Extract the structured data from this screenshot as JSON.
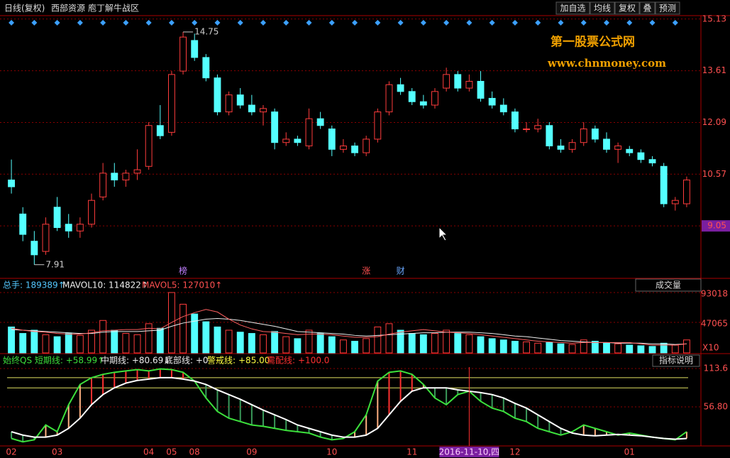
{
  "toolbar": {
    "title": "日线(复权)",
    "stock": "西部资源",
    "zone": "庖丁解牛战区",
    "buttons": [
      "加自选",
      "均线",
      "复权",
      "叠",
      "预测"
    ]
  },
  "watermark": {
    "name": "第一股票公式网",
    "url": "www.chnmoney.com"
  },
  "price_panel": {
    "ylim": [
      7.55,
      15.23
    ],
    "yticks": [
      15.13,
      13.61,
      12.09,
      10.57,
      9.05
    ],
    "high": 14.75,
    "low": 7.91,
    "candles": [
      [
        10.4,
        11.0,
        10.0,
        10.2
      ],
      [
        9.4,
        9.6,
        8.6,
        8.8
      ],
      [
        8.6,
        8.9,
        7.91,
        8.2
      ],
      [
        8.3,
        9.3,
        8.2,
        9.1
      ],
      [
        9.6,
        9.9,
        8.9,
        9.0
      ],
      [
        9.1,
        9.4,
        8.7,
        8.9
      ],
      [
        8.9,
        9.3,
        8.7,
        9.1
      ],
      [
        9.1,
        10.0,
        9.0,
        9.8
      ],
      [
        9.9,
        10.9,
        9.8,
        10.6
      ],
      [
        10.6,
        10.9,
        10.2,
        10.4
      ],
      [
        10.4,
        10.7,
        10.2,
        10.6
      ],
      [
        10.6,
        11.3,
        10.4,
        10.7
      ],
      [
        10.8,
        12.1,
        10.7,
        12.0
      ],
      [
        12.0,
        12.6,
        11.6,
        11.7
      ],
      [
        11.8,
        13.6,
        11.7,
        13.5
      ],
      [
        13.6,
        14.75,
        13.5,
        14.6
      ],
      [
        14.5,
        14.7,
        13.9,
        14.0
      ],
      [
        14.0,
        14.1,
        13.3,
        13.4
      ],
      [
        13.4,
        13.5,
        12.3,
        12.4
      ],
      [
        12.4,
        13.0,
        12.3,
        12.9
      ],
      [
        12.9,
        13.1,
        12.5,
        12.6
      ],
      [
        12.6,
        12.9,
        12.3,
        12.4
      ],
      [
        12.4,
        12.6,
        12.0,
        12.5
      ],
      [
        12.4,
        12.5,
        11.3,
        11.5
      ],
      [
        11.5,
        11.8,
        11.4,
        11.6
      ],
      [
        11.6,
        11.7,
        11.4,
        11.5
      ],
      [
        11.4,
        12.5,
        11.3,
        12.2
      ],
      [
        12.2,
        12.4,
        11.9,
        12.0
      ],
      [
        11.9,
        12.0,
        11.1,
        11.3
      ],
      [
        11.3,
        11.6,
        11.2,
        11.4
      ],
      [
        11.4,
        11.5,
        11.1,
        11.2
      ],
      [
        11.2,
        11.7,
        11.1,
        11.6
      ],
      [
        11.6,
        12.5,
        11.5,
        12.4
      ],
      [
        12.4,
        13.3,
        12.3,
        13.2
      ],
      [
        13.2,
        13.4,
        12.9,
        13.0
      ],
      [
        13.0,
        13.1,
        12.6,
        12.7
      ],
      [
        12.7,
        12.9,
        12.5,
        12.6
      ],
      [
        12.6,
        13.1,
        12.5,
        13.0
      ],
      [
        13.1,
        13.7,
        13.0,
        13.5
      ],
      [
        13.5,
        13.6,
        13.0,
        13.1
      ],
      [
        13.1,
        13.5,
        13.0,
        13.3
      ],
      [
        13.3,
        13.6,
        12.7,
        12.8
      ],
      [
        12.8,
        13.0,
        12.5,
        12.6
      ],
      [
        12.6,
        12.8,
        12.3,
        12.4
      ],
      [
        12.4,
        12.5,
        11.8,
        11.9
      ],
      [
        11.9,
        12.1,
        11.8,
        11.9
      ],
      [
        11.9,
        12.2,
        11.8,
        12.0
      ],
      [
        12.0,
        12.1,
        11.3,
        11.4
      ],
      [
        11.4,
        11.6,
        11.2,
        11.3
      ],
      [
        11.3,
        11.6,
        11.2,
        11.5
      ],
      [
        11.5,
        12.1,
        11.4,
        11.9
      ],
      [
        11.9,
        12.0,
        11.5,
        11.6
      ],
      [
        11.6,
        11.8,
        11.2,
        11.3
      ],
      [
        11.3,
        11.5,
        10.9,
        11.4
      ],
      [
        11.3,
        11.4,
        11.1,
        11.2
      ],
      [
        11.2,
        11.3,
        10.9,
        11.0
      ],
      [
        11.0,
        11.1,
        10.8,
        10.9
      ],
      [
        10.8,
        10.9,
        9.6,
        9.7
      ],
      [
        9.7,
        9.9,
        9.5,
        9.8
      ],
      [
        9.7,
        10.5,
        9.6,
        10.4
      ]
    ],
    "events": [
      null,
      null,
      null,
      null,
      null,
      null,
      null,
      null,
      null,
      null,
      null,
      null,
      null,
      null,
      null,
      "榜",
      null,
      null,
      null,
      null,
      null,
      null,
      null,
      null,
      null,
      null,
      null,
      null,
      null,
      null,
      null,
      "涨",
      null,
      null,
      "财",
      null,
      null,
      null,
      null,
      null,
      null,
      null,
      null,
      null,
      null,
      null,
      null,
      null,
      null,
      null,
      null,
      null,
      null,
      null,
      null,
      null,
      null,
      null,
      null,
      null
    ]
  },
  "volume_panel": {
    "total": "总手: 189389↑",
    "mavol10_label": "MAVOL10: 114822↑",
    "mavol5_label": "MAVOL5: 127010↑",
    "selector": "成交量",
    "ylim": [
      0,
      95155
    ],
    "yticks": [
      93018,
      47065
    ],
    "unit": "X10",
    "volumes": [
      40000,
      30000,
      35000,
      28000,
      25000,
      30000,
      27000,
      35000,
      50000,
      35000,
      30000,
      28000,
      45000,
      38000,
      93000,
      75000,
      60000,
      48000,
      40000,
      35000,
      32000,
      30000,
      28000,
      33000,
      25000,
      22000,
      35000,
      30000,
      25000,
      20000,
      18000,
      22000,
      40000,
      45000,
      35000,
      30000,
      28000,
      30000,
      35000,
      30000,
      28000,
      25000,
      22000,
      20000,
      18000,
      17000,
      15000,
      16000,
      14000,
      13000,
      20000,
      18000,
      15000,
      14000,
      12000,
      11000,
      10000,
      15000,
      12000,
      20000
    ],
    "mavol5": [
      38000,
      35000,
      33000,
      32000,
      30000,
      29000,
      29000,
      31000,
      34000,
      35000,
      36000,
      36000,
      38000,
      37000,
      47000,
      56000,
      62000,
      67000,
      63000,
      52000,
      43000,
      37000,
      33000,
      32000,
      30000,
      28000,
      29000,
      29000,
      28000,
      26000,
      24000,
      24000,
      25000,
      29000,
      32000,
      34000,
      36000,
      34000,
      32000,
      31000,
      30000,
      28000,
      26000,
      24000,
      22000,
      20000,
      18000,
      17000,
      16000,
      15000,
      16000,
      16000,
      16000,
      16000,
      16000,
      14000,
      12000,
      12000,
      12000,
      14000
    ],
    "mavol10": [
      36000,
      35000,
      34000,
      33000,
      32000,
      31000,
      30000,
      30000,
      32000,
      33000,
      33000,
      33000,
      34000,
      35000,
      41000,
      46000,
      49000,
      52000,
      53000,
      52000,
      50000,
      47000,
      44000,
      41000,
      37000,
      33000,
      32000,
      31000,
      30000,
      29000,
      27000,
      26000,
      27000,
      28000,
      29000,
      30000,
      31000,
      31000,
      32000,
      32000,
      32000,
      31000,
      30000,
      28000,
      26000,
      25000,
      23000,
      21000,
      19000,
      18000,
      17000,
      16000,
      16000,
      15000,
      15000,
      15000,
      14000,
      14000,
      13000,
      14000
    ]
  },
  "indicator_panel": {
    "name": "始终QS 短期线: +58.99↑",
    "mid_label": "中期线: +80.69↓",
    "bottom_label": "底部线: +0",
    "warn_name": "警戒线:",
    "warn": {
      "value": 85,
      "label": "+85.00"
    },
    "need_name": "需配线:",
    "need": {
      "value": 100,
      "label": "+100.0"
    },
    "help": "指标说明",
    "ylim": [
      0,
      115.7
    ],
    "yticks": [
      113.6,
      {
        "value": 56.8,
        "label": "56.80"
      }
    ],
    "short": [
      10,
      5,
      8,
      30,
      20,
      60,
      90,
      100,
      105,
      108,
      110,
      112,
      110,
      113,
      112,
      108,
      95,
      70,
      50,
      40,
      35,
      30,
      28,
      25,
      22,
      20,
      18,
      12,
      8,
      10,
      20,
      45,
      95,
      108,
      110,
      105,
      90,
      70,
      60,
      75,
      80,
      65,
      55,
      50,
      40,
      35,
      25,
      20,
      15,
      20,
      30,
      25,
      20,
      15,
      18,
      15,
      12,
      10,
      8,
      20
    ],
    "mid": [
      20,
      15,
      12,
      12,
      15,
      25,
      40,
      60,
      75,
      85,
      92,
      96,
      98,
      100,
      100,
      98,
      95,
      90,
      82,
      75,
      68,
      60,
      52,
      45,
      38,
      30,
      25,
      20,
      15,
      12,
      12,
      15,
      25,
      45,
      65,
      80,
      85,
      85,
      85,
      82,
      80,
      78,
      75,
      70,
      62,
      55,
      45,
      35,
      25,
      18,
      15,
      14,
      15,
      16,
      15,
      14,
      12,
      10,
      9,
      10
    ]
  },
  "x_labels": [
    "02",
    null,
    null,
    null,
    "03",
    null,
    null,
    null,
    null,
    null,
    null,
    null,
    "04",
    null,
    "05",
    null,
    "08",
    null,
    null,
    null,
    null,
    "09",
    null,
    null,
    null,
    null,
    null,
    null,
    "10",
    null,
    null,
    null,
    null,
    null,
    null,
    "11",
    null,
    null,
    null,
    null,
    "2016-11-10,四",
    null,
    null,
    null,
    "12",
    null,
    null,
    null,
    null,
    null,
    null,
    null,
    null,
    null,
    "01",
    null,
    null,
    null,
    null,
    null
  ]
}
